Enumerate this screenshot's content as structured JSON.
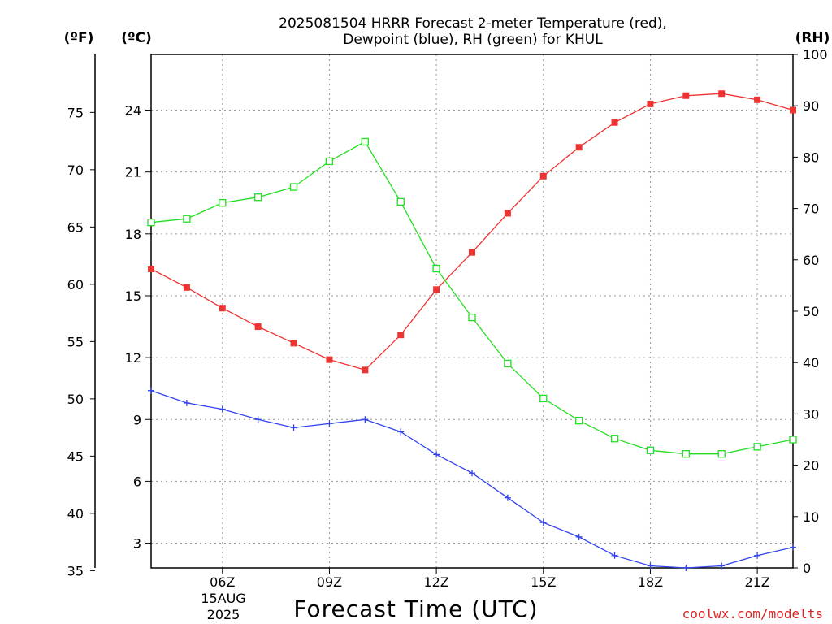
{
  "chart_data": {
    "type": "line",
    "title_line1": "2025081504 HRRR Forecast 2-meter Temperature (red),",
    "title_line2": "Dewpoint (blue), RH (green) for KHUL",
    "xlabel": "Forecast Time (UTC)",
    "date_lines": [
      "15AUG",
      "2025"
    ],
    "credit": "coolwx.com/modelts",
    "units": {
      "fahrenheit": "(ºF)",
      "celsius": "(ºC)",
      "rh": "(RH)"
    },
    "x_hours": [
      4,
      5,
      6,
      7,
      8,
      9,
      10,
      11,
      12,
      13,
      14,
      15,
      16,
      17,
      18,
      19,
      20,
      21,
      22
    ],
    "x_range": [
      4,
      22
    ],
    "x_ticks": [
      {
        "hour": 6,
        "label": "06Z"
      },
      {
        "hour": 9,
        "label": "09Z"
      },
      {
        "hour": 12,
        "label": "12Z"
      },
      {
        "hour": 15,
        "label": "15Z"
      },
      {
        "hour": 18,
        "label": "18Z"
      },
      {
        "hour": 21,
        "label": "21Z"
      }
    ],
    "celsius_range": [
      1.8,
      26.7
    ],
    "celsius_ticks": [
      "3",
      "6",
      "9",
      "12",
      "15",
      "18",
      "21",
      "24"
    ],
    "fahrenheit_ticks": [
      "35",
      "40",
      "45",
      "50",
      "55",
      "60",
      "65",
      "70",
      "75"
    ],
    "rh_range": [
      0,
      100
    ],
    "rh_ticks": [
      "0",
      "10",
      "20",
      "30",
      "40",
      "50",
      "60",
      "70",
      "80",
      "90",
      "100"
    ],
    "grid": true,
    "series": [
      {
        "key": "temperature",
        "color": "#ee3333",
        "marker": "filled-square",
        "axis": "celsius",
        "values": [
          16.3,
          15.4,
          14.4,
          13.5,
          12.7,
          11.9,
          11.4,
          13.1,
          15.3,
          17.1,
          19.0,
          20.8,
          22.2,
          23.4,
          24.3,
          24.7,
          24.8,
          24.5,
          24.0
        ]
      },
      {
        "key": "dewpoint",
        "color": "#3344ee",
        "marker": "plus",
        "axis": "celsius",
        "values": [
          10.4,
          9.8,
          9.5,
          9.0,
          8.6,
          8.8,
          9.0,
          8.4,
          7.3,
          6.4,
          5.2,
          4.0,
          3.3,
          2.4,
          1.9,
          1.8,
          1.9,
          2.4,
          2.8
        ]
      },
      {
        "key": "rh",
        "color": "#22dd22",
        "marker": "open-square",
        "axis": "rh",
        "values": [
          67.3,
          68.0,
          71.1,
          72.2,
          74.2,
          79.2,
          83.0,
          71.3,
          58.3,
          48.8,
          39.8,
          33.0,
          28.7,
          25.2,
          22.9,
          22.2,
          22.2,
          23.6,
          25.0
        ]
      }
    ]
  }
}
